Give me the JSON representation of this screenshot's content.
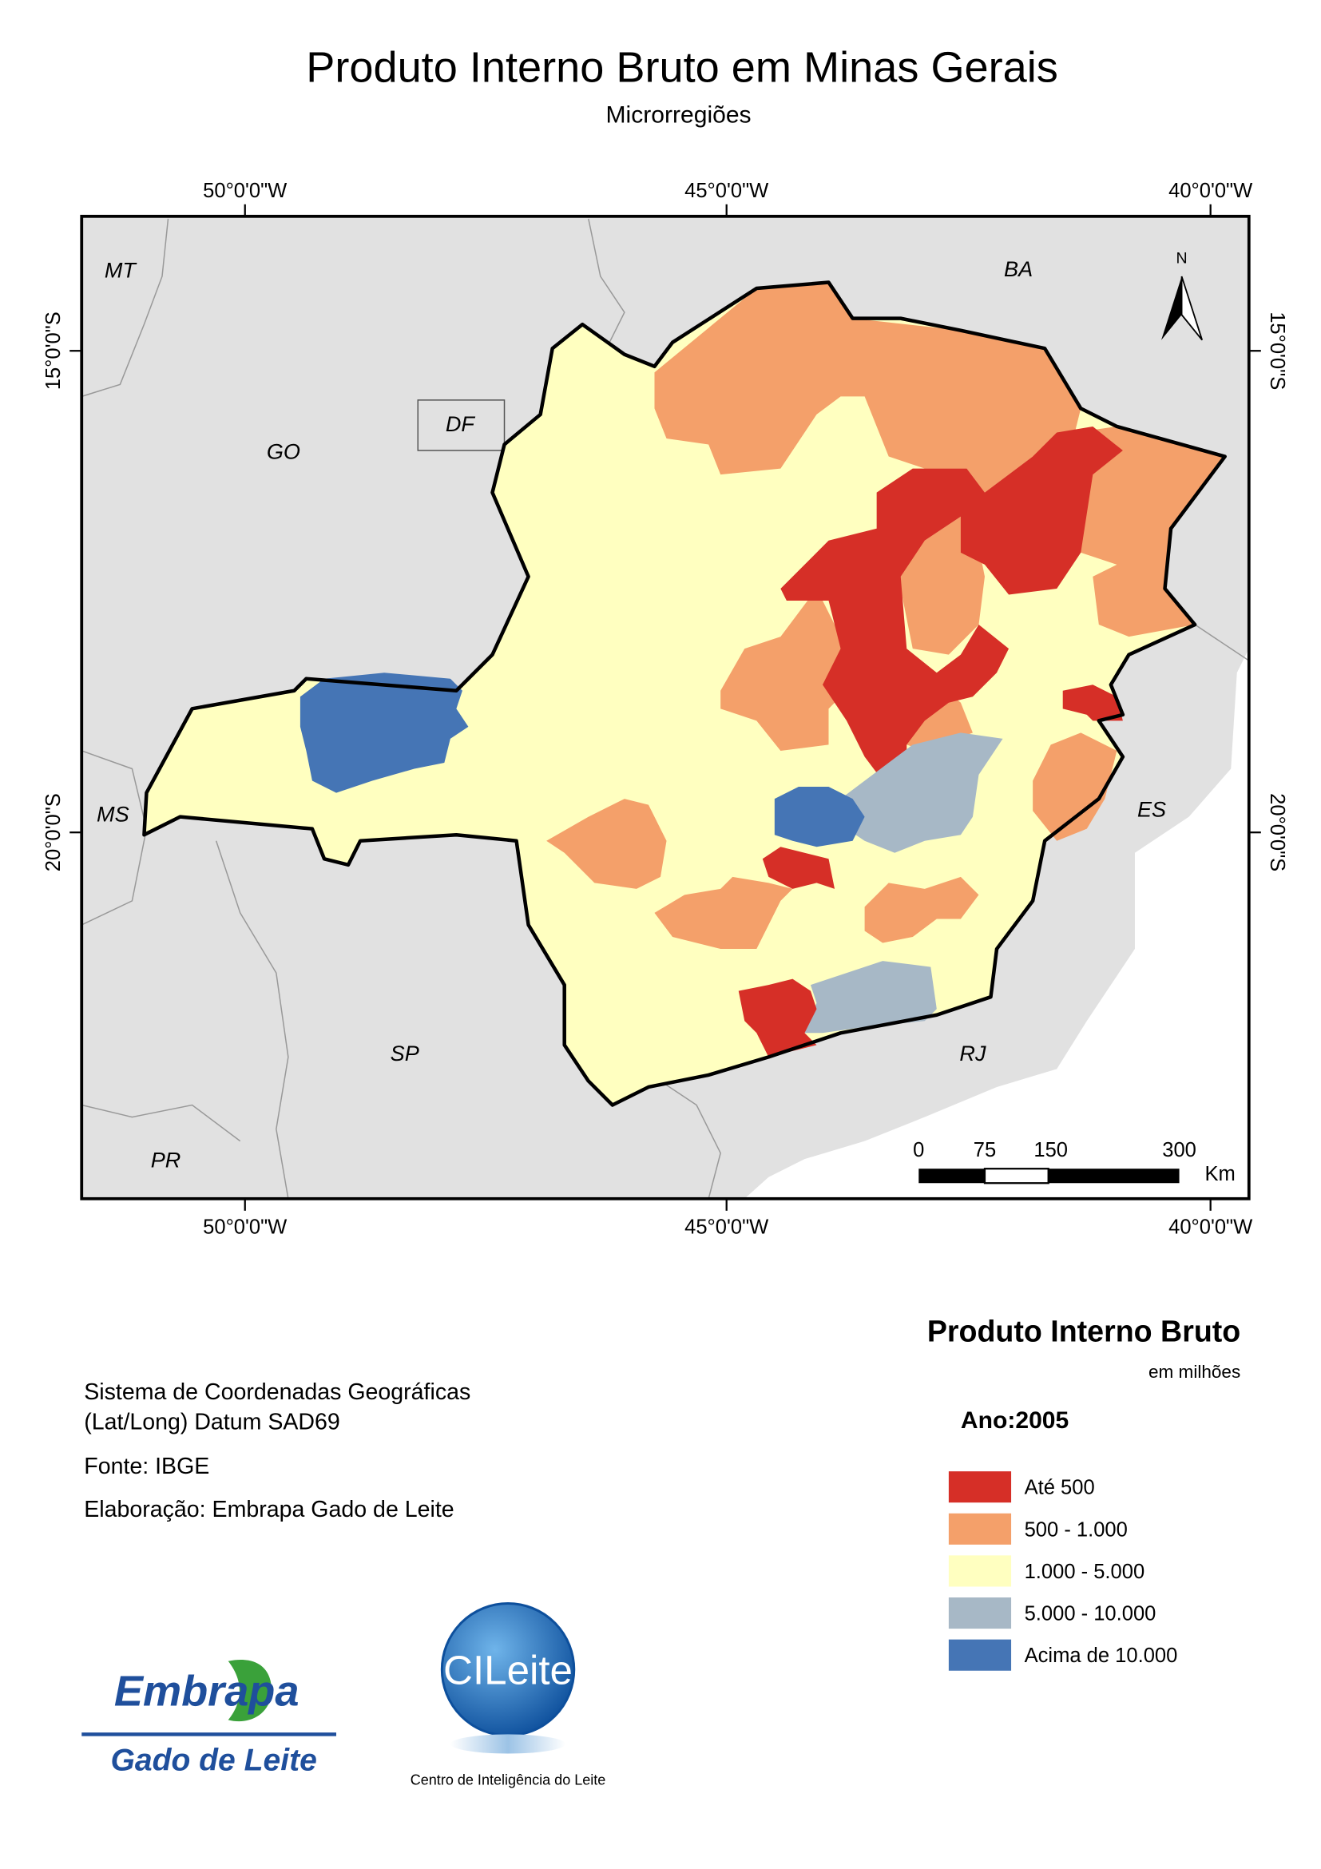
{
  "header": {
    "title": "Produto Interno Bruto em Minas Gerais",
    "subtitle": "Microrregiões"
  },
  "map": {
    "longitude_labels": [
      "50°0'0\"W",
      "45°0'0\"W",
      "40°0'0\"W"
    ],
    "latitude_labels": [
      "15°0'0\"S",
      "20°0'0\"S"
    ],
    "state_labels": [
      "MT",
      "BA",
      "GO",
      "DF",
      "MS",
      "ES",
      "SP",
      "RJ",
      "PR"
    ],
    "north": "N",
    "scale_bar": {
      "labels": [
        "0",
        "75",
        "150",
        "300"
      ],
      "unit": "Km"
    }
  },
  "legend": {
    "title": "Produto Interno Bruto",
    "subtitle": "em milhões",
    "year": "Ano:2005",
    "items": [
      {
        "label": "Até 500",
        "color": "#d62f27"
      },
      {
        "label": "500 - 1.000",
        "color": "#f4a06a"
      },
      {
        "label": "1.000 - 5.000",
        "color": "#ffffc0"
      },
      {
        "label": "5.000 - 10.000",
        "color": "#a7b8c6"
      },
      {
        "label": "Acima de 10.000",
        "color": "#4575b5"
      }
    ]
  },
  "notes": [
    "Sistema de Coordenadas Geográficas",
    "(Lat/Long) Datum SAD69",
    "Fonte: IBGE",
    "Elaboração: Embrapa Gado de Leite"
  ],
  "logos": {
    "embrapa": "Embrapa",
    "embrapa_unit": "Gado de Leite",
    "cileite": "CILeite",
    "cileite_caption": "Centro de Inteligência do Leite"
  }
}
